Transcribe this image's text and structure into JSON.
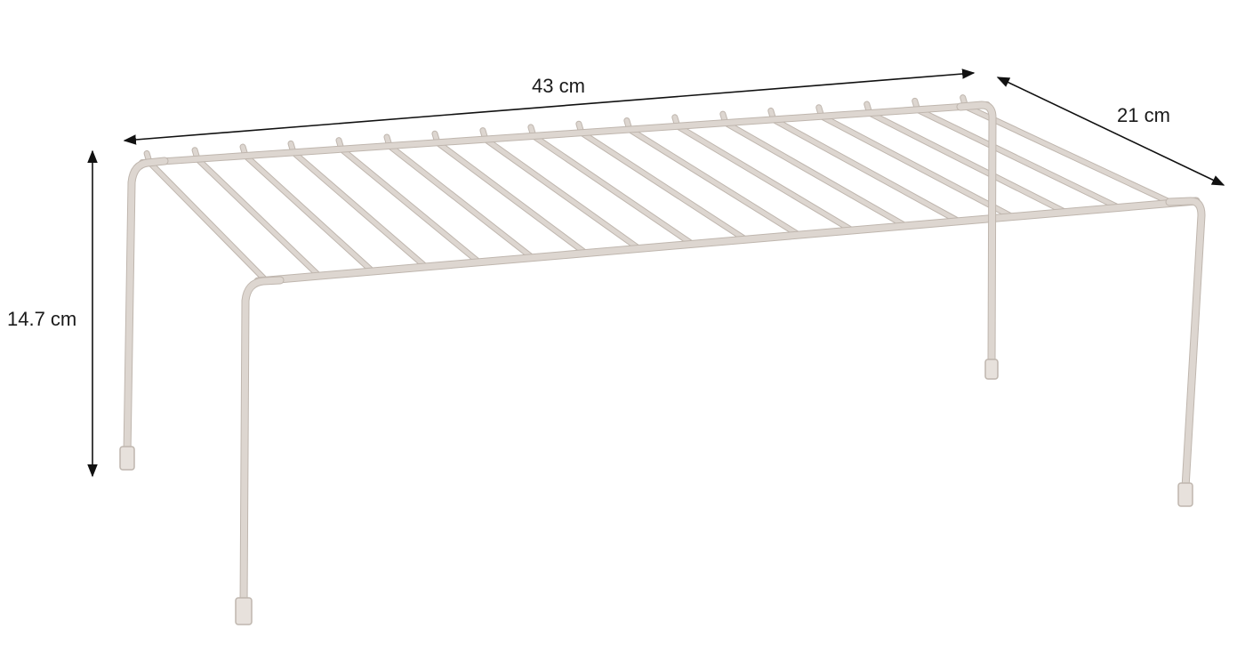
{
  "dimensions": {
    "width_label": "43 cm",
    "depth_label": "21 cm",
    "height_label": "14.7 cm"
  },
  "product": {
    "icon": "wire-shelf-rack",
    "slat_count": 18,
    "wire_color": "#ddd6d0",
    "wire_edge_color": "#bfb6ae",
    "foot_color": "#e7e1dc",
    "dimension_line_color": "#111111"
  }
}
